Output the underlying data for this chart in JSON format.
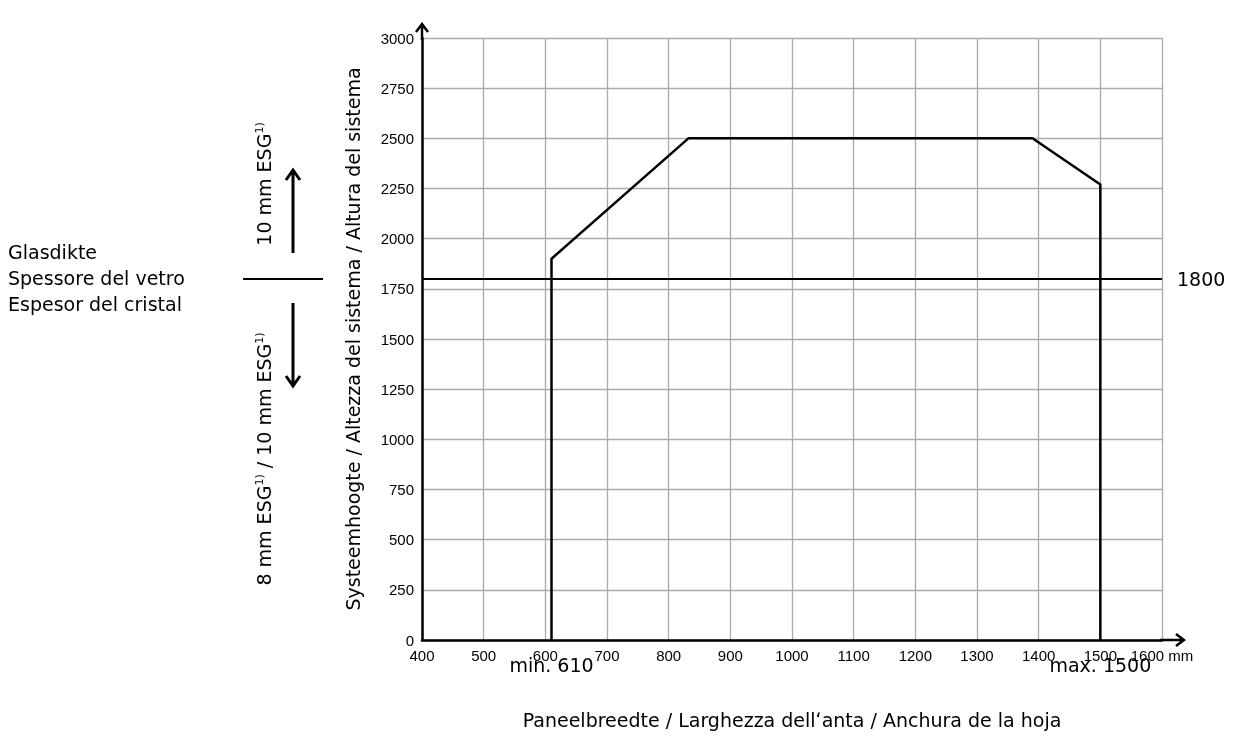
{
  "chart_data": {
    "type": "line",
    "xlabel": "Paneelbreedte / Larghezza dellʻanta / Anchura de la hoja",
    "ylabel": "Systeemhoogte / Altezza del sistema / Altura del sistema",
    "x": [
      610,
      610,
      832,
      1390,
      1500,
      1500
    ],
    "series": [
      {
        "color": "#000000",
        "values": [
          0,
          1900,
          2500,
          2500,
          2270,
          0
        ]
      }
    ],
    "xlim": [
      400,
      1600
    ],
    "xticks": [
      400,
      500,
      600,
      700,
      800,
      900,
      1000,
      1100,
      1200,
      1300,
      1400,
      1500,
      {
        "value": 1600,
        "label": "1600 mm"
      }
    ],
    "ylim": [
      0,
      3000
    ],
    "yticks": [
      0,
      250,
      500,
      750,
      1000,
      1250,
      1500,
      1750,
      2000,
      2250,
      2500,
      2750,
      3000
    ],
    "grid": true,
    "marker": "none",
    "line_style": "solid",
    "ref_lines": [
      {
        "axis": "y",
        "value": 1800,
        "label": "1800",
        "color": "#000000"
      }
    ],
    "annotations": [
      "Glasdikte\nSpessore del vetro\nEspesor del cristal",
      "10 mm ESG$^{1)}$",
      "8 mm ESG$^{1)}$ / 10 mm ESG$^{1)}$",
      "min. 610",
      "max. 1500"
    ]
  }
}
